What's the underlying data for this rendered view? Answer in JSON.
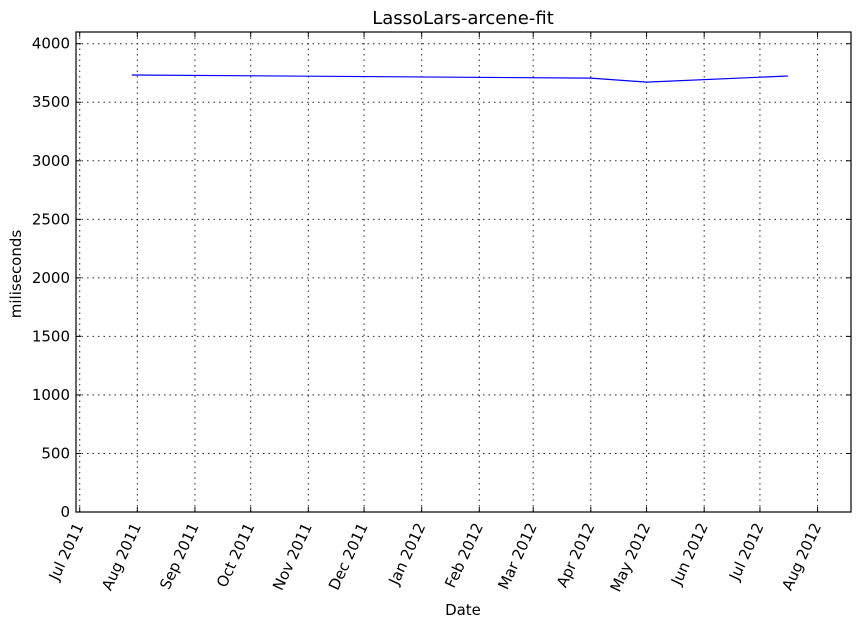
{
  "chart_data": {
    "type": "line",
    "title": "LassoLars-arcene-fit",
    "xlabel": "Date",
    "ylabel": "miliseconds",
    "x_type": "date",
    "xlim": [
      "2011-06-29",
      "2012-08-19"
    ],
    "ylim": [
      0,
      4100
    ],
    "grid": true,
    "x_ticks": [
      {
        "date": "2011-07-01",
        "label": "Jul 2011"
      },
      {
        "date": "2011-08-01",
        "label": "Aug 2011"
      },
      {
        "date": "2011-09-01",
        "label": "Sep 2011"
      },
      {
        "date": "2011-10-01",
        "label": "Oct 2011"
      },
      {
        "date": "2011-11-01",
        "label": "Nov 2011"
      },
      {
        "date": "2011-12-01",
        "label": "Dec 2011"
      },
      {
        "date": "2012-01-01",
        "label": "Jan 2012"
      },
      {
        "date": "2012-02-01",
        "label": "Feb 2012"
      },
      {
        "date": "2012-03-01",
        "label": "Mar 2012"
      },
      {
        "date": "2012-04-01",
        "label": "Apr 2012"
      },
      {
        "date": "2012-05-01",
        "label": "May 2012"
      },
      {
        "date": "2012-06-01",
        "label": "Jun 2012"
      },
      {
        "date": "2012-07-01",
        "label": "Jul 2012"
      },
      {
        "date": "2012-08-01",
        "label": "Aug 2012"
      }
    ],
    "y_ticks": [
      0,
      500,
      1000,
      1500,
      2000,
      2500,
      3000,
      3500,
      4000
    ],
    "series": [
      {
        "color": "#0000ff",
        "points": [
          {
            "x": "2011-07-29",
            "y": 3733
          },
          {
            "x": "2012-04-01",
            "y": 3706
          },
          {
            "x": "2012-05-01",
            "y": 3672
          },
          {
            "x": "2012-07-16",
            "y": 3724
          }
        ]
      }
    ]
  }
}
